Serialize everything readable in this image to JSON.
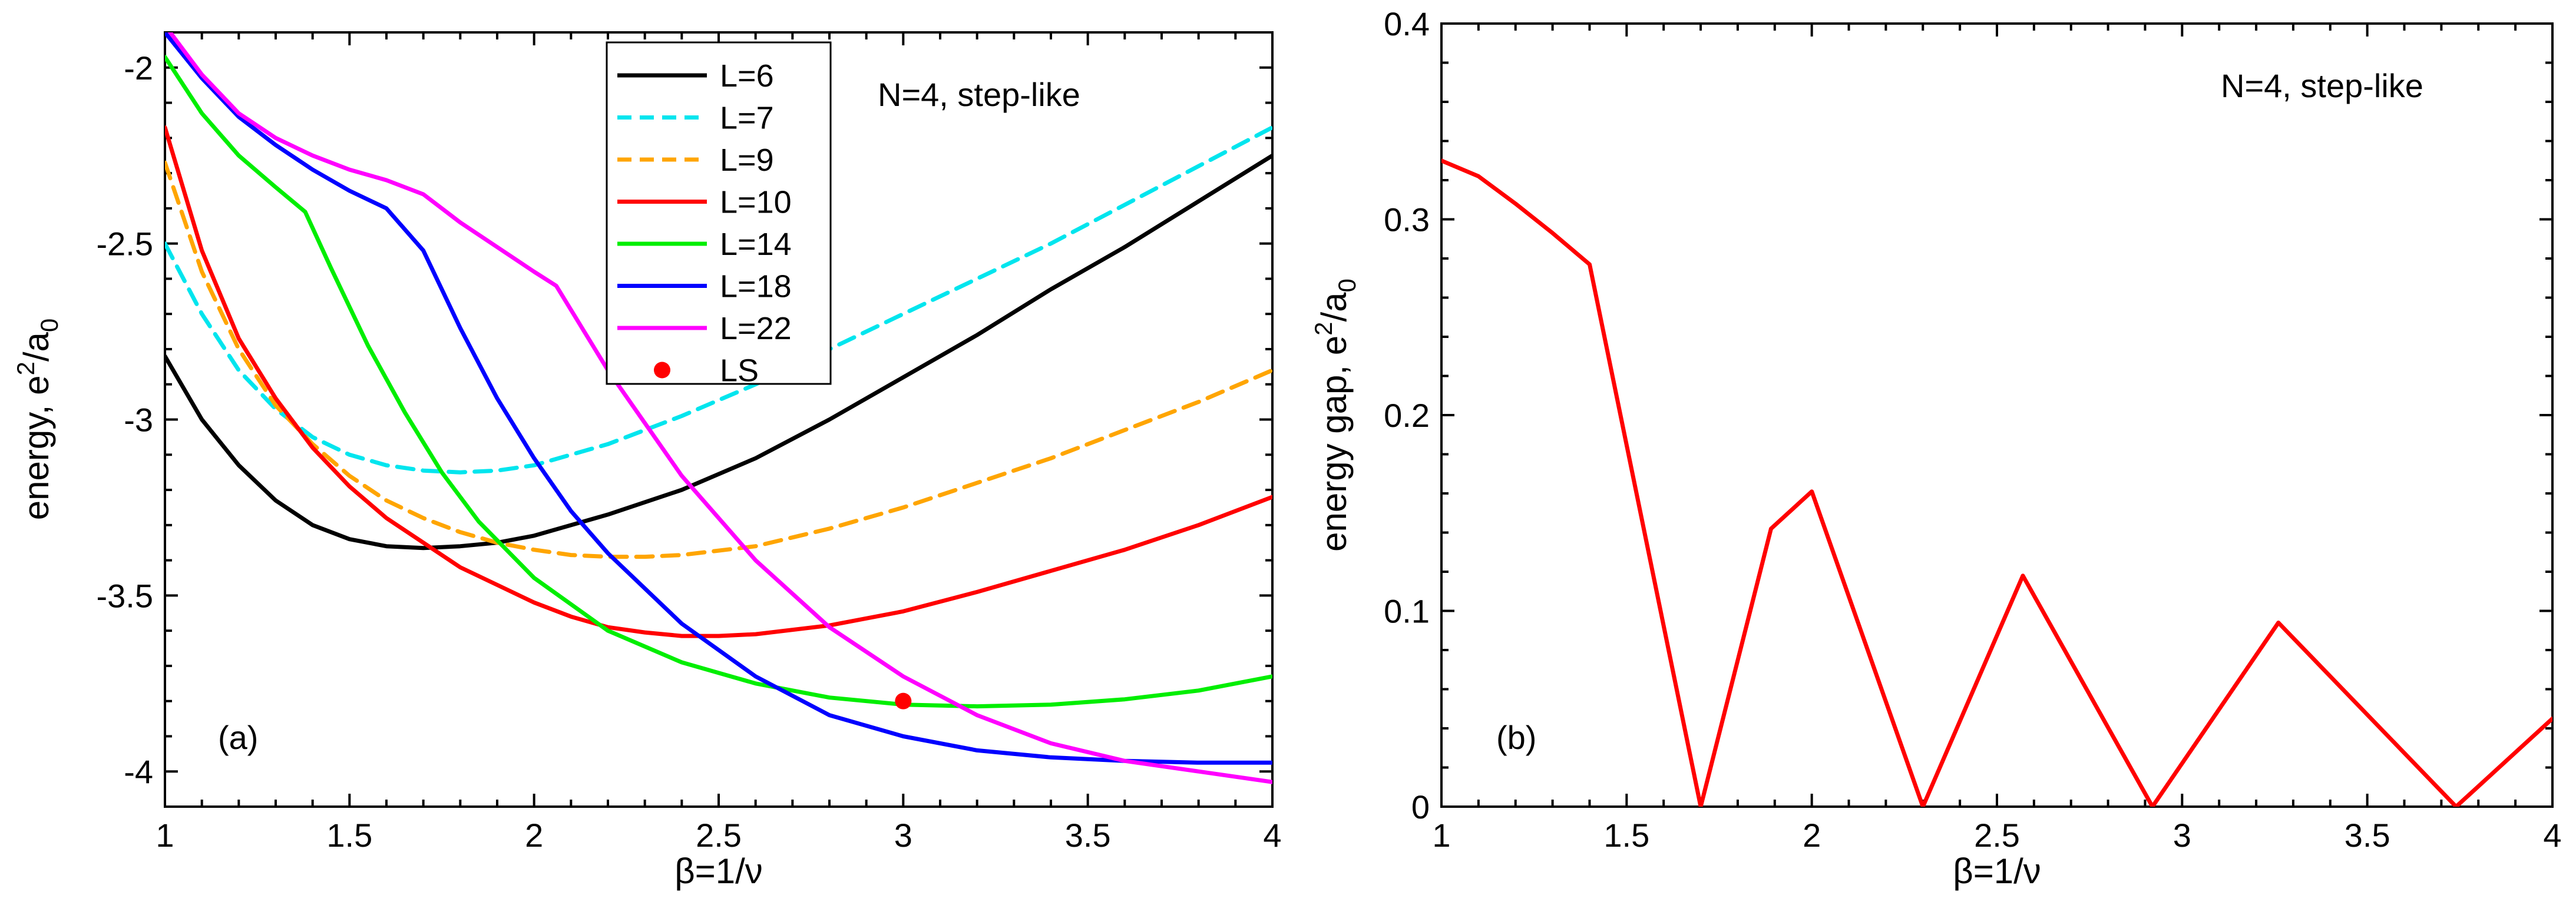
{
  "chart_data": [
    {
      "panel": "a",
      "type": "line",
      "panel_label": "(a)",
      "annotation": "N=4, step-like",
      "xlabel": "β=1/ν",
      "ylabel_main": "energy, e",
      "ylabel_sup": "2",
      "ylabel_rest": "/a",
      "ylabel_sub": "0",
      "xlim": [
        1,
        4
      ],
      "ylim": [
        -4.1,
        -1.9
      ],
      "xticks": [
        1,
        1.5,
        2,
        2.5,
        3,
        3.5,
        4
      ],
      "xtick_labels": [
        "1",
        "1.5",
        "2",
        "2.5",
        "3",
        "3.5",
        "4"
      ],
      "yticks": [
        -4,
        -3.5,
        -3,
        -2.5,
        -2
      ],
      "ytick_labels": [
        "-4",
        "-3.5",
        "-3",
        "-2.5",
        "-2"
      ],
      "series": [
        {
          "name": "L=6",
          "color": "#000000",
          "dash": "solid",
          "x": [
            1,
            1.1,
            1.2,
            1.3,
            1.4,
            1.5,
            1.6,
            1.7,
            1.8,
            1.9,
            2,
            2.2,
            2.4,
            2.6,
            2.8,
            3,
            3.2,
            3.4,
            3.6,
            3.8,
            4
          ],
          "y": [
            -2.82,
            -3.0,
            -3.13,
            -3.23,
            -3.3,
            -3.34,
            -3.36,
            -3.365,
            -3.36,
            -3.35,
            -3.33,
            -3.27,
            -3.2,
            -3.11,
            -3.0,
            -2.88,
            -2.76,
            -2.63,
            -2.51,
            -2.38,
            -2.25
          ]
        },
        {
          "name": "L=7",
          "color": "#00e5ee",
          "dash": "dashed",
          "x": [
            1,
            1.1,
            1.2,
            1.3,
            1.4,
            1.5,
            1.6,
            1.7,
            1.8,
            1.9,
            2,
            2.2,
            2.4,
            2.6,
            2.8,
            3,
            3.2,
            3.4,
            3.6,
            3.8,
            4
          ],
          "y": [
            -2.5,
            -2.7,
            -2.86,
            -2.97,
            -3.05,
            -3.1,
            -3.13,
            -3.145,
            -3.15,
            -3.145,
            -3.13,
            -3.07,
            -2.99,
            -2.9,
            -2.8,
            -2.7,
            -2.6,
            -2.5,
            -2.39,
            -2.28,
            -2.17
          ]
        },
        {
          "name": "L=9",
          "color": "#ffa500",
          "dash": "dashed",
          "x": [
            1,
            1.1,
            1.2,
            1.3,
            1.4,
            1.5,
            1.6,
            1.7,
            1.8,
            1.9,
            2,
            2.1,
            2.2,
            2.3,
            2.4,
            2.6,
            2.8,
            3,
            3.2,
            3.4,
            3.6,
            3.8,
            4
          ],
          "y": [
            -2.27,
            -2.58,
            -2.8,
            -2.96,
            -3.07,
            -3.16,
            -3.23,
            -3.28,
            -3.32,
            -3.35,
            -3.37,
            -3.385,
            -3.39,
            -3.39,
            -3.385,
            -3.36,
            -3.31,
            -3.25,
            -3.18,
            -3.11,
            -3.03,
            -2.95,
            -2.86
          ]
        },
        {
          "name": "L=10",
          "color": "#ff0000",
          "dash": "solid",
          "x": [
            1,
            1.1,
            1.2,
            1.3,
            1.4,
            1.5,
            1.6,
            1.7,
            1.8,
            1.9,
            2,
            2.1,
            2.2,
            2.3,
            2.4,
            2.5,
            2.6,
            2.8,
            3,
            3.2,
            3.4,
            3.6,
            3.8,
            4
          ],
          "y": [
            -2.17,
            -2.52,
            -2.77,
            -2.94,
            -3.08,
            -3.19,
            -3.28,
            -3.35,
            -3.42,
            -3.47,
            -3.52,
            -3.56,
            -3.59,
            -3.605,
            -3.615,
            -3.615,
            -3.61,
            -3.585,
            -3.545,
            -3.49,
            -3.43,
            -3.37,
            -3.3,
            -3.22
          ]
        },
        {
          "name": "L=14",
          "color": "#00ee00",
          "dash": "solid",
          "x": [
            1,
            1.1,
            1.2,
            1.3,
            1.38,
            1.45,
            1.55,
            1.65,
            1.75,
            1.85,
            2,
            2.2,
            2.4,
            2.6,
            2.8,
            3,
            3.2,
            3.4,
            3.6,
            3.8,
            4
          ],
          "y": [
            -1.97,
            -2.13,
            -2.25,
            -2.34,
            -2.41,
            -2.57,
            -2.79,
            -2.98,
            -3.15,
            -3.29,
            -3.45,
            -3.6,
            -3.69,
            -3.75,
            -3.79,
            -3.81,
            -3.815,
            -3.81,
            -3.795,
            -3.77,
            -3.73
          ]
        },
        {
          "name": "L=18",
          "color": "#0000ff",
          "dash": "solid",
          "x": [
            1,
            1.1,
            1.2,
            1.3,
            1.4,
            1.5,
            1.6,
            1.7,
            1.8,
            1.9,
            2,
            2.1,
            2.2,
            2.4,
            2.6,
            2.8,
            3,
            3.2,
            3.4,
            3.6,
            3.8,
            4
          ],
          "y": [
            -1.9,
            -2.03,
            -2.14,
            -2.22,
            -2.29,
            -2.35,
            -2.4,
            -2.52,
            -2.74,
            -2.94,
            -3.11,
            -3.26,
            -3.38,
            -3.58,
            -3.73,
            -3.84,
            -3.9,
            -3.94,
            -3.96,
            -3.97,
            -3.975,
            -3.975
          ]
        },
        {
          "name": "L=22",
          "color": "#ff00ff",
          "dash": "solid",
          "x": [
            1,
            1.1,
            1.2,
            1.3,
            1.4,
            1.5,
            1.6,
            1.7,
            1.8,
            1.9,
            2,
            2.06,
            2.2,
            2.4,
            2.6,
            2.8,
            3,
            3.2,
            3.4,
            3.6,
            3.8,
            4
          ],
          "y": [
            -1.88,
            -2.02,
            -2.13,
            -2.2,
            -2.25,
            -2.29,
            -2.32,
            -2.36,
            -2.44,
            -2.51,
            -2.58,
            -2.62,
            -2.86,
            -3.16,
            -3.4,
            -3.59,
            -3.73,
            -3.84,
            -3.92,
            -3.97,
            -4.0,
            -4.03
          ]
        }
      ],
      "points": [
        {
          "name": "LS",
          "color": "#ff0000",
          "x": 3.0,
          "y": -3.8
        }
      ],
      "legend": [
        "L=6",
        "L=7",
        "L=9",
        "L=10",
        "L=14",
        "L=18",
        "L=22",
        "LS"
      ],
      "legend_position": "top-center"
    },
    {
      "panel": "b",
      "type": "line",
      "panel_label": "(b)",
      "annotation": "N=4, step-like",
      "xlabel": "β=1/ν",
      "ylabel_main": "energy gap, e",
      "ylabel_sup": "2",
      "ylabel_rest": "/a",
      "ylabel_sub": "0",
      "xlim": [
        1,
        4
      ],
      "ylim": [
        0,
        0.4
      ],
      "xticks": [
        1,
        1.5,
        2,
        2.5,
        3,
        3.5,
        4
      ],
      "xtick_labels": [
        "1",
        "1.5",
        "2",
        "2.5",
        "3",
        "3.5",
        "4"
      ],
      "yticks": [
        0,
        0.1,
        0.2,
        0.3,
        0.4
      ],
      "ytick_labels": [
        "0",
        "0.1",
        "0.2",
        "0.3",
        "0.4"
      ],
      "series": [
        {
          "name": "gap",
          "color": "#ff0000",
          "dash": "solid",
          "x": [
            1,
            1.1,
            1.2,
            1.3,
            1.4,
            1.7,
            1.89,
            2.0,
            2.3,
            2.57,
            2.92,
            3.26,
            3.74,
            4.0
          ],
          "y": [
            0.33,
            0.322,
            0.308,
            0.293,
            0.277,
            0.0,
            0.142,
            0.161,
            0.0,
            0.118,
            0.0,
            0.094,
            0.0,
            0.045
          ]
        }
      ]
    }
  ]
}
